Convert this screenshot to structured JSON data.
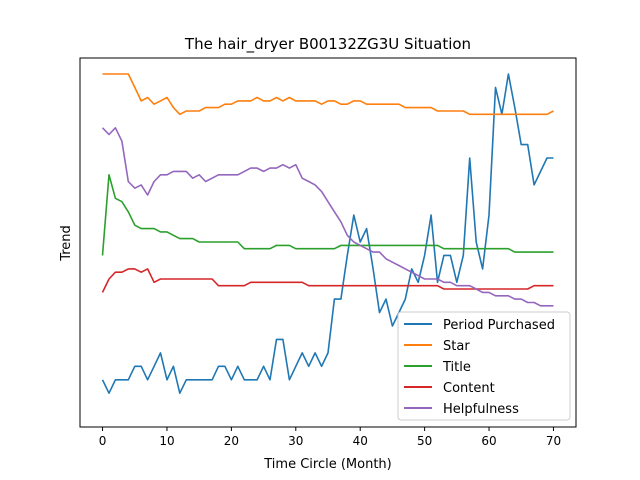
{
  "chart_data": {
    "type": "line",
    "title": "The hair_dryer B00132ZG3U Situation",
    "xlabel": "Time Circle (Month)",
    "ylabel": "Trend",
    "xlim": [
      -3.5,
      73.5
    ],
    "ylim": [
      0,
      1
    ],
    "xticks": [
      0,
      10,
      20,
      30,
      40,
      50,
      60,
      70
    ],
    "yticks_shown": false,
    "grid": false,
    "legend_position": "lower-right",
    "series": [
      {
        "name": "Period Purchased",
        "color": "#1f77b4",
        "x": [
          0,
          1,
          2,
          3,
          4,
          5,
          6,
          7,
          8,
          9,
          10,
          11,
          12,
          13,
          14,
          15,
          16,
          17,
          18,
          19,
          20,
          21,
          22,
          23,
          24,
          25,
          26,
          27,
          28,
          29,
          30,
          31,
          32,
          33,
          34,
          35,
          36,
          37,
          38,
          39,
          40,
          41,
          42,
          43,
          44,
          45,
          46,
          47,
          48,
          49,
          50,
          51,
          52,
          53,
          54,
          55,
          56,
          57,
          58,
          59,
          60,
          61,
          62,
          63,
          64,
          65,
          66,
          67,
          68,
          69,
          70
        ],
        "values": [
          0.09,
          0.05,
          0.09,
          0.09,
          0.09,
          0.13,
          0.13,
          0.09,
          0.13,
          0.17,
          0.09,
          0.13,
          0.05,
          0.09,
          0.09,
          0.09,
          0.09,
          0.09,
          0.13,
          0.13,
          0.09,
          0.13,
          0.09,
          0.09,
          0.09,
          0.13,
          0.09,
          0.21,
          0.21,
          0.09,
          0.13,
          0.17,
          0.13,
          0.17,
          0.13,
          0.17,
          0.33,
          0.33,
          0.46,
          0.58,
          0.5,
          0.54,
          0.42,
          0.29,
          0.33,
          0.25,
          0.29,
          0.33,
          0.42,
          0.38,
          0.46,
          0.58,
          0.38,
          0.46,
          0.46,
          0.38,
          0.46,
          0.75,
          0.5,
          0.42,
          0.58,
          0.96,
          0.88,
          1.0,
          0.9,
          0.79,
          0.79,
          0.67,
          0.71,
          0.75,
          0.75
        ]
      },
      {
        "name": "Star",
        "color": "#ff7f0e",
        "x": [
          0,
          1,
          2,
          3,
          4,
          5,
          6,
          7,
          8,
          9,
          10,
          11,
          12,
          13,
          14,
          15,
          16,
          17,
          18,
          19,
          20,
          21,
          22,
          23,
          24,
          25,
          26,
          27,
          28,
          29,
          30,
          31,
          32,
          33,
          34,
          35,
          36,
          37,
          38,
          39,
          40,
          41,
          42,
          43,
          44,
          45,
          46,
          47,
          48,
          49,
          50,
          51,
          52,
          53,
          54,
          55,
          56,
          57,
          58,
          59,
          60,
          61,
          62,
          63,
          64,
          65,
          66,
          67,
          68,
          69,
          70
        ],
        "values": [
          1.0,
          1.0,
          1.0,
          1.0,
          1.0,
          0.96,
          0.92,
          0.93,
          0.91,
          0.92,
          0.93,
          0.9,
          0.88,
          0.89,
          0.89,
          0.89,
          0.9,
          0.9,
          0.9,
          0.91,
          0.91,
          0.92,
          0.92,
          0.92,
          0.93,
          0.92,
          0.92,
          0.93,
          0.92,
          0.93,
          0.92,
          0.92,
          0.92,
          0.92,
          0.91,
          0.92,
          0.92,
          0.91,
          0.91,
          0.92,
          0.92,
          0.91,
          0.91,
          0.91,
          0.91,
          0.91,
          0.91,
          0.9,
          0.9,
          0.9,
          0.9,
          0.9,
          0.89,
          0.89,
          0.89,
          0.89,
          0.89,
          0.88,
          0.88,
          0.88,
          0.88,
          0.88,
          0.88,
          0.88,
          0.88,
          0.88,
          0.88,
          0.88,
          0.88,
          0.88,
          0.89
        ]
      },
      {
        "name": "Title",
        "color": "#2ca02c",
        "x": [
          0,
          1,
          2,
          3,
          4,
          5,
          6,
          7,
          8,
          9,
          10,
          11,
          12,
          13,
          14,
          15,
          16,
          17,
          18,
          19,
          20,
          21,
          22,
          23,
          24,
          25,
          26,
          27,
          28,
          29,
          30,
          31,
          32,
          33,
          34,
          35,
          36,
          37,
          38,
          39,
          40,
          41,
          42,
          43,
          44,
          45,
          46,
          47,
          48,
          49,
          50,
          51,
          52,
          53,
          54,
          55,
          56,
          57,
          58,
          59,
          60,
          61,
          62,
          63,
          64,
          65,
          66,
          67,
          68,
          69,
          70
        ],
        "values": [
          0.46,
          0.7,
          0.63,
          0.62,
          0.59,
          0.55,
          0.54,
          0.54,
          0.54,
          0.53,
          0.53,
          0.52,
          0.51,
          0.51,
          0.51,
          0.5,
          0.5,
          0.5,
          0.5,
          0.5,
          0.5,
          0.5,
          0.48,
          0.48,
          0.48,
          0.48,
          0.48,
          0.49,
          0.49,
          0.49,
          0.48,
          0.48,
          0.48,
          0.48,
          0.48,
          0.48,
          0.48,
          0.49,
          0.49,
          0.49,
          0.49,
          0.49,
          0.49,
          0.49,
          0.49,
          0.49,
          0.49,
          0.49,
          0.49,
          0.49,
          0.49,
          0.49,
          0.49,
          0.48,
          0.48,
          0.48,
          0.48,
          0.48,
          0.48,
          0.48,
          0.48,
          0.48,
          0.48,
          0.48,
          0.47,
          0.47,
          0.47,
          0.47,
          0.47,
          0.47,
          0.47
        ]
      },
      {
        "name": "Content",
        "color": "#d62728",
        "x": [
          0,
          1,
          2,
          3,
          4,
          5,
          6,
          7,
          8,
          9,
          10,
          11,
          12,
          13,
          14,
          15,
          16,
          17,
          18,
          19,
          20,
          21,
          22,
          23,
          24,
          25,
          26,
          27,
          28,
          29,
          30,
          31,
          32,
          33,
          34,
          35,
          36,
          37,
          38,
          39,
          40,
          41,
          42,
          43,
          44,
          45,
          46,
          47,
          48,
          49,
          50,
          51,
          52,
          53,
          54,
          55,
          56,
          57,
          58,
          59,
          60,
          61,
          62,
          63,
          64,
          65,
          66,
          67,
          68,
          69,
          70
        ],
        "values": [
          0.35,
          0.39,
          0.41,
          0.41,
          0.42,
          0.42,
          0.41,
          0.42,
          0.38,
          0.39,
          0.39,
          0.39,
          0.39,
          0.39,
          0.39,
          0.39,
          0.39,
          0.39,
          0.37,
          0.37,
          0.37,
          0.37,
          0.37,
          0.38,
          0.38,
          0.38,
          0.38,
          0.38,
          0.38,
          0.38,
          0.38,
          0.38,
          0.37,
          0.37,
          0.37,
          0.37,
          0.37,
          0.37,
          0.37,
          0.37,
          0.37,
          0.37,
          0.37,
          0.37,
          0.37,
          0.37,
          0.37,
          0.37,
          0.37,
          0.37,
          0.37,
          0.37,
          0.37,
          0.36,
          0.36,
          0.36,
          0.36,
          0.36,
          0.36,
          0.36,
          0.36,
          0.36,
          0.36,
          0.36,
          0.36,
          0.36,
          0.36,
          0.37,
          0.37,
          0.37,
          0.37
        ]
      },
      {
        "name": "Helpfulness",
        "color": "#9467bd",
        "x": [
          0,
          1,
          2,
          3,
          4,
          5,
          6,
          7,
          8,
          9,
          10,
          11,
          12,
          13,
          14,
          15,
          16,
          17,
          18,
          19,
          20,
          21,
          22,
          23,
          24,
          25,
          26,
          27,
          28,
          29,
          30,
          31,
          32,
          33,
          34,
          35,
          36,
          37,
          38,
          39,
          40,
          41,
          42,
          43,
          44,
          45,
          46,
          47,
          48,
          49,
          50,
          51,
          52,
          53,
          54,
          55,
          56,
          57,
          58,
          59,
          60,
          61,
          62,
          63,
          64,
          65,
          66,
          67,
          68,
          69,
          70
        ],
        "values": [
          0.84,
          0.82,
          0.84,
          0.8,
          0.68,
          0.66,
          0.67,
          0.64,
          0.68,
          0.7,
          0.7,
          0.71,
          0.71,
          0.71,
          0.69,
          0.7,
          0.68,
          0.69,
          0.7,
          0.7,
          0.7,
          0.7,
          0.71,
          0.72,
          0.72,
          0.71,
          0.72,
          0.72,
          0.73,
          0.72,
          0.73,
          0.69,
          0.68,
          0.67,
          0.65,
          0.62,
          0.59,
          0.56,
          0.52,
          0.5,
          0.49,
          0.48,
          0.47,
          0.47,
          0.45,
          0.44,
          0.43,
          0.42,
          0.41,
          0.4,
          0.39,
          0.39,
          0.39,
          0.38,
          0.38,
          0.37,
          0.37,
          0.37,
          0.36,
          0.35,
          0.35,
          0.34,
          0.34,
          0.34,
          0.33,
          0.33,
          0.32,
          0.32,
          0.31,
          0.31,
          0.31
        ]
      }
    ]
  }
}
